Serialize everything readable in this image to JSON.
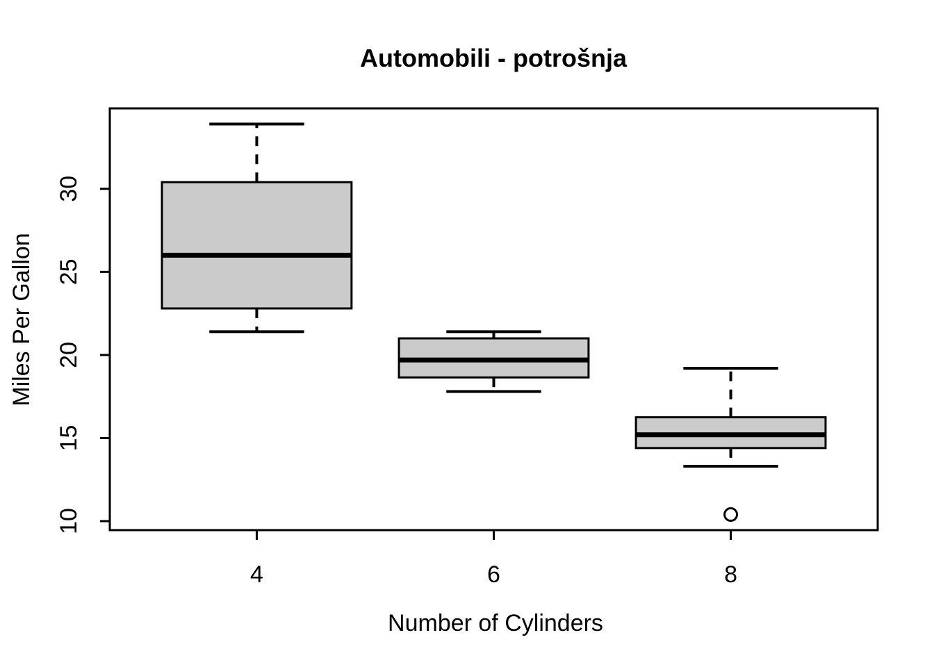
{
  "figure": {
    "background": "#ffffff"
  },
  "chart_data": {
    "type": "boxplot",
    "title": "Automobili - potrošnja",
    "xlabel": "Number of Cylinders",
    "ylabel": "Miles Per Gallon",
    "categories": [
      "4",
      "6",
      "8"
    ],
    "ylim": [
      9.46,
      34.84
    ],
    "yticks": [
      10,
      15,
      20,
      25,
      30
    ],
    "grid": false,
    "legend": false,
    "colors": {
      "box_fill": "#cbcbcb",
      "stroke": "#000000",
      "background": "#ffffff"
    },
    "series": [
      {
        "category": "4",
        "lower_whisker": 21.4,
        "q1": 22.8,
        "median": 26.0,
        "q3": 30.4,
        "upper_whisker": 33.9,
        "outliers": []
      },
      {
        "category": "6",
        "lower_whisker": 17.8,
        "q1": 18.65,
        "median": 19.7,
        "q3": 21.0,
        "upper_whisker": 21.4,
        "outliers": []
      },
      {
        "category": "8",
        "lower_whisker": 13.3,
        "q1": 14.4,
        "median": 15.2,
        "q3": 16.25,
        "upper_whisker": 19.2,
        "outliers": [
          10.4
        ]
      }
    ]
  }
}
